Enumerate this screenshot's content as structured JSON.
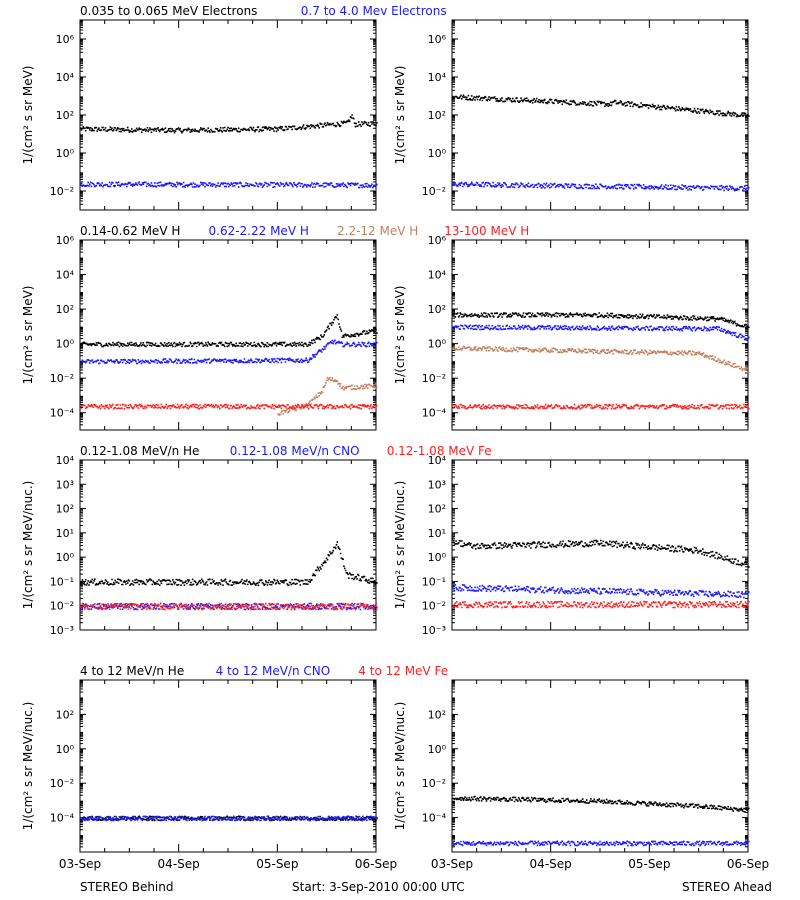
{
  "colors": {
    "black": "#000000",
    "blue": "#1a1aff",
    "brown": "#c08060",
    "red": "#ff2020"
  },
  "footer": {
    "left": "STEREO Behind",
    "center": "Start:  3-Sep-2010 00:00 UTC",
    "right": "STEREO Ahead"
  },
  "chart_data": [
    {
      "type": "scatter",
      "row": 1,
      "ylabel": "1/(cm² s sr MeV)",
      "ytick_exponents": [
        -2,
        0,
        2,
        4,
        6
      ],
      "ylim": [
        0.001,
        10000000
      ],
      "legend": [
        {
          "text": "0.035 to 0.065 MeV Electrons",
          "color": "black"
        },
        {
          "text": "0.7 to 4.0 Mev Electrons",
          "color": "blue"
        }
      ],
      "xticks": [
        "03-Sep",
        "04-Sep",
        "05-Sep",
        "06-Sep"
      ],
      "panels": [
        {
          "name": "STEREO Behind",
          "series": [
            {
              "color": "black",
              "profile": [
                [
                  0,
                  20
                ],
                [
                  1,
                  17
                ],
                [
                  2,
                  20
                ],
                [
                  2.7,
                  40
                ],
                [
                  2.75,
                  100
                ],
                [
                  2.78,
                  35
                ],
                [
                  3,
                  40
                ]
              ]
            },
            {
              "color": "blue",
              "profile": [
                [
                  0,
                  0.025
                ],
                [
                  3,
                  0.022
                ]
              ]
            }
          ]
        },
        {
          "name": "STEREO Ahead",
          "series": [
            {
              "color": "black",
              "profile": [
                [
                  0,
                  1000
                ],
                [
                  1.6,
                  400
                ],
                [
                  1.62,
                  500
                ],
                [
                  3,
                  100
                ]
              ]
            },
            {
              "color": "blue",
              "profile": [
                [
                  0,
                  0.025
                ],
                [
                  3,
                  0.015
                ]
              ]
            }
          ]
        }
      ]
    },
    {
      "type": "scatter",
      "row": 2,
      "ylabel": "1/(cm² s sr MeV)",
      "ytick_exponents": [
        -4,
        -2,
        0,
        2,
        4,
        6
      ],
      "ylim": [
        1e-05,
        1000000
      ],
      "legend": [
        {
          "text": "0.14-0.62 MeV H",
          "color": "black"
        },
        {
          "text": "0.62-2.22 MeV H",
          "color": "blue"
        },
        {
          "text": "2.2-12 MeV H",
          "color": "brown"
        },
        {
          "text": "13-100 MeV H",
          "color": "red"
        }
      ],
      "xticks": [
        "03-Sep",
        "04-Sep",
        "05-Sep",
        "06-Sep"
      ],
      "panels": [
        {
          "name": "STEREO Behind",
          "series": [
            {
              "color": "black",
              "profile": [
                [
                  0,
                  1
                ],
                [
                  2.3,
                  1
                ],
                [
                  2.45,
                  3
                ],
                [
                  2.55,
                  20
                ],
                [
                  2.6,
                  50
                ],
                [
                  2.65,
                  3
                ],
                [
                  3,
                  6
                ]
              ]
            },
            {
              "color": "blue",
              "profile": [
                [
                  0,
                  0.1
                ],
                [
                  2.3,
                  0.12
                ],
                [
                  2.45,
                  0.5
                ],
                [
                  2.55,
                  1.5
                ],
                [
                  2.65,
                  1
                ],
                [
                  3,
                  1
                ]
              ]
            },
            {
              "color": "brown",
              "profile": [
                [
                  2.0,
                  0.0001
                ],
                [
                  2.3,
                  0.0003
                ],
                [
                  2.45,
                  0.002
                ],
                [
                  2.5,
                  0.01
                ],
                [
                  2.6,
                  0.008
                ],
                [
                  2.65,
                  0.003
                ],
                [
                  3,
                  0.004
                ]
              ]
            },
            {
              "color": "red",
              "profile": [
                [
                  0,
                  0.00025
                ],
                [
                  3,
                  0.00025
                ]
              ]
            }
          ]
        },
        {
          "name": "STEREO Ahead",
          "series": [
            {
              "color": "black",
              "profile": [
                [
                  0,
                  50
                ],
                [
                  1.5,
                  50
                ],
                [
                  2.7,
                  30
                ],
                [
                  3,
                  10
                ]
              ]
            },
            {
              "color": "blue",
              "profile": [
                [
                  0,
                  10
                ],
                [
                  2.7,
                  8
                ],
                [
                  3,
                  2
                ]
              ]
            },
            {
              "color": "brown",
              "profile": [
                [
                  0,
                  0.6
                ],
                [
                  2.5,
                  0.3
                ],
                [
                  3,
                  0.03
                ]
              ]
            },
            {
              "color": "red",
              "profile": [
                [
                  0,
                  0.00025
                ],
                [
                  3,
                  0.00025
                ]
              ]
            }
          ]
        }
      ]
    },
    {
      "type": "scatter",
      "row": 3,
      "ylabel": "1/(cm² s sr MeV/nuc.)",
      "ytick_exponents": [
        -3,
        -2,
        -1,
        0,
        1,
        2,
        3,
        4
      ],
      "ylim": [
        0.001,
        10000
      ],
      "legend": [
        {
          "text": "0.12-1.08 MeV/n He",
          "color": "black"
        },
        {
          "text": "0.12-1.08 MeV/n CNO",
          "color": "blue"
        },
        {
          "text": "0.12-1.08 MeV Fe",
          "color": "red"
        }
      ],
      "xticks": [
        "03-Sep",
        "04-Sep",
        "05-Sep",
        "06-Sep"
      ],
      "panels": [
        {
          "name": "STEREO Behind",
          "series": [
            {
              "color": "black",
              "profile": [
                [
                  0,
                  0.1
                ],
                [
                  2.3,
                  0.1
                ],
                [
                  2.5,
                  1
                ],
                [
                  2.6,
                  4
                ],
                [
                  2.7,
                  0.2
                ],
                [
                  3,
                  0.1
                ]
              ]
            },
            {
              "color": "blue",
              "profile": [
                [
                  0,
                  0.01
                ],
                [
                  3,
                  0.01
                ]
              ]
            },
            {
              "color": "red",
              "profile": [
                [
                  0,
                  0.01
                ],
                [
                  3,
                  0.01
                ]
              ]
            }
          ]
        },
        {
          "name": "STEREO Ahead",
          "series": [
            {
              "color": "black",
              "profile": [
                [
                  0,
                  5
                ],
                [
                  0.2,
                  3
                ],
                [
                  1.5,
                  4
                ],
                [
                  2.5,
                  2
                ],
                [
                  3,
                  0.5
                ]
              ]
            },
            {
              "color": "blue",
              "profile": [
                [
                  0,
                  0.06
                ],
                [
                  3,
                  0.03
                ]
              ]
            },
            {
              "color": "red",
              "profile": [
                [
                  0,
                  0.012
                ],
                [
                  3,
                  0.012
                ]
              ]
            }
          ]
        }
      ]
    },
    {
      "type": "scatter",
      "row": 4,
      "ylabel": "1/(cm² s sr MeV/nuc.)",
      "ytick_exponents": [
        -4,
        -2,
        0,
        2
      ],
      "ylim": [
        1e-06,
        10000
      ],
      "legend": [
        {
          "text": "4 to 12 MeV/n He",
          "color": "black"
        },
        {
          "text": "4 to 12 MeV/n CNO",
          "color": "blue"
        },
        {
          "text": "4 to 12 MeV Fe",
          "color": "red"
        }
      ],
      "xticks": [
        "03-Sep",
        "04-Sep",
        "05-Sep",
        "06-Sep"
      ],
      "panels": [
        {
          "name": "STEREO Behind",
          "series": [
            {
              "color": "black",
              "profile": [
                [
                  0,
                  0.0001
                ],
                [
                  3,
                  0.0001
                ]
              ]
            },
            {
              "color": "blue",
              "profile": [
                [
                  0,
                  0.0001
                ],
                [
                  3,
                  0.0001
                ]
              ]
            }
          ]
        },
        {
          "name": "STEREO Ahead",
          "series": [
            {
              "color": "black",
              "profile": [
                [
                  0,
                  0.0015
                ],
                [
                  1.5,
                  0.001
                ],
                [
                  2.5,
                  0.0005
                ],
                [
                  3,
                  0.0003
                ]
              ]
            },
            {
              "color": "blue",
              "profile": [
                [
                  0,
                  3.5e-06
                ],
                [
                  3,
                  3.5e-06
                ]
              ]
            }
          ]
        }
      ]
    }
  ]
}
